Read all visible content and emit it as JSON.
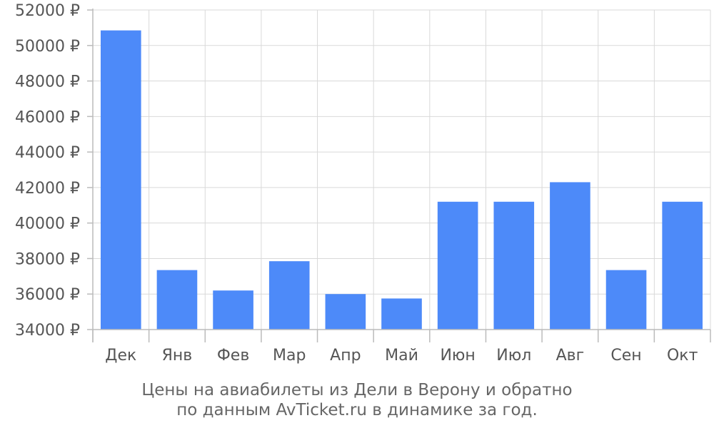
{
  "chart_data": {
    "type": "bar",
    "categories": [
      "Дек",
      "Янв",
      "Фев",
      "Мар",
      "Апр",
      "Май",
      "Июн",
      "Июл",
      "Авг",
      "Сен",
      "Окт"
    ],
    "values": [
      50850,
      37350,
      36200,
      37850,
      36000,
      35750,
      41200,
      41200,
      42300,
      37350,
      41200
    ],
    "ylim": [
      34000,
      52000
    ],
    "yticks": [
      34000,
      36000,
      38000,
      40000,
      42000,
      44000,
      46000,
      48000,
      50000,
      52000
    ],
    "ytick_labels": [
      "34000 ₽",
      "36000 ₽",
      "38000 ₽",
      "40000 ₽",
      "42000 ₽",
      "44000 ₽",
      "46000 ₽",
      "48000 ₽",
      "50000 ₽",
      "52000 ₽"
    ],
    "grid": true,
    "bar_color": "#4d8af9"
  },
  "caption": {
    "line1": "Цены на авиабилеты из Дели в Верону и обратно",
    "line2": "по данным AvTicket.ru в динамике за год."
  }
}
